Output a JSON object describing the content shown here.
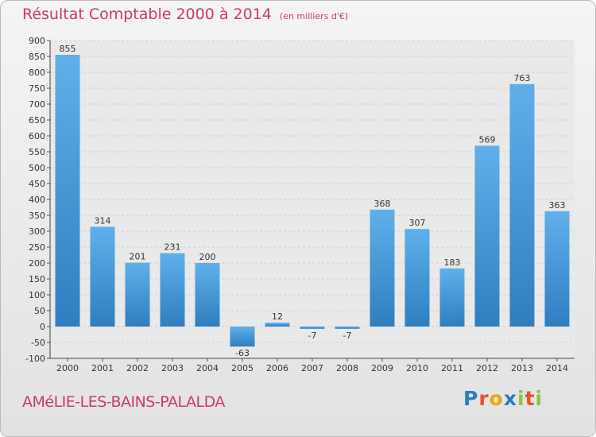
{
  "title": "Résultat Comptable 2000 à 2014",
  "subtitle": "(en milliers d'€)",
  "commune": "AMéLIE-LES-BAINS-PALALDA",
  "logo": {
    "letters": [
      "P",
      "r",
      "o",
      "x",
      "i",
      "t",
      "i"
    ],
    "colors": [
      "#2c7cc4",
      "#e8502d",
      "#f0a500",
      "#2c7cc4",
      "#8cc63f",
      "#e8502d",
      "#8cc63f"
    ]
  },
  "colors": {
    "accent": "#c83c64",
    "bar_top": "#5fb0ea",
    "bar_bottom": "#2f7ec0"
  },
  "chart_data": {
    "type": "bar",
    "title": "Résultat Comptable 2000 à 2014",
    "subtitle": "(en milliers d'€)",
    "xlabel": "",
    "ylabel": "",
    "categories": [
      "2000",
      "2001",
      "2002",
      "2003",
      "2004",
      "2005",
      "2006",
      "2007",
      "2008",
      "2009",
      "2010",
      "2011",
      "2012",
      "2013",
      "2014"
    ],
    "values": [
      855,
      314,
      201,
      231,
      200,
      -63,
      12,
      -7,
      -7,
      368,
      307,
      183,
      569,
      763,
      363
    ],
    "ylim": [
      -100,
      900
    ],
    "yticks": [
      -100,
      -50,
      0,
      50,
      100,
      150,
      200,
      250,
      300,
      350,
      400,
      450,
      500,
      550,
      600,
      650,
      700,
      750,
      800,
      850,
      900
    ],
    "grid": true,
    "data_labels": true
  }
}
